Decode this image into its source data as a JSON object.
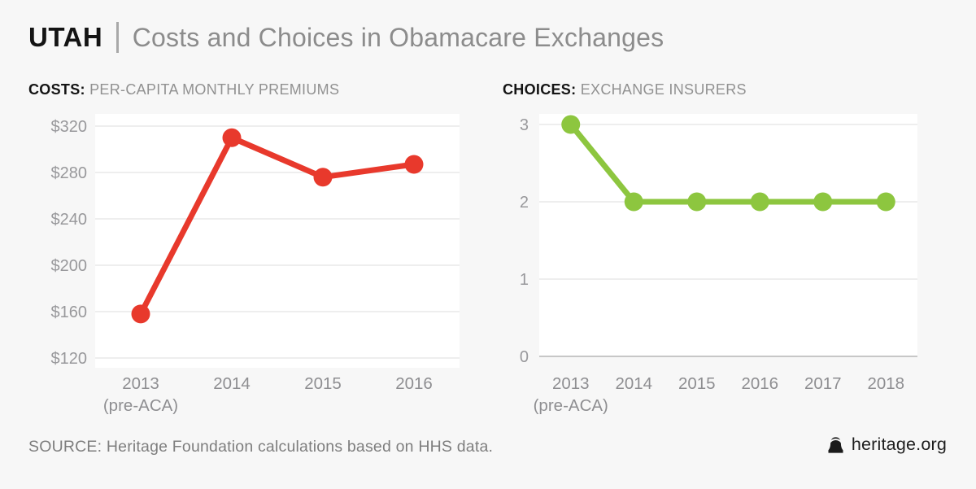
{
  "header": {
    "state": "UTAH",
    "title": "Costs and Choices in Obamacare Exchanges"
  },
  "footer": {
    "source": "SOURCE: Heritage Foundation calculations based on HHS data.",
    "brand": "heritage.org",
    "brand_icon": "liberty-bell-icon"
  },
  "colors": {
    "background": "#f7f7f7",
    "plot_background": "#ffffff",
    "gridline": "#e9e9e9",
    "axis_line": "#c7c7c7",
    "costs_red": "#e8392c",
    "choices_green": "#8dc63f"
  },
  "chart_data": [
    {
      "type": "line",
      "title_bold": "COSTS:",
      "title_rest": " PER-CAPITA MONTHLY PREMIUMS",
      "categories": [
        "2013",
        "2014",
        "2015",
        "2016"
      ],
      "x_sublabels": [
        "(pre-ACA)",
        "",
        "",
        ""
      ],
      "values": [
        158,
        310,
        276,
        287
      ],
      "yticks": [
        320,
        280,
        240,
        200,
        160,
        120
      ],
      "ytick_prefix": "$",
      "ylim": [
        120,
        320
      ],
      "xlabel": "",
      "ylabel": "",
      "grid": true,
      "legend": "none",
      "color": "#e8392c"
    },
    {
      "type": "line",
      "title_bold": "CHOICES:",
      "title_rest": " EXCHANGE INSURERS",
      "categories": [
        "2013",
        "2014",
        "2015",
        "2016",
        "2017",
        "2018"
      ],
      "x_sublabels": [
        "(pre-ACA)",
        "",
        "",
        "",
        "",
        ""
      ],
      "values": [
        3,
        2,
        2,
        2,
        2,
        2
      ],
      "yticks": [
        3,
        2,
        1,
        0
      ],
      "ytick_prefix": "",
      "ylim": [
        0,
        3
      ],
      "baseline": 0,
      "xlabel": "",
      "ylabel": "",
      "grid": true,
      "legend": "none",
      "color": "#8dc63f"
    }
  ]
}
